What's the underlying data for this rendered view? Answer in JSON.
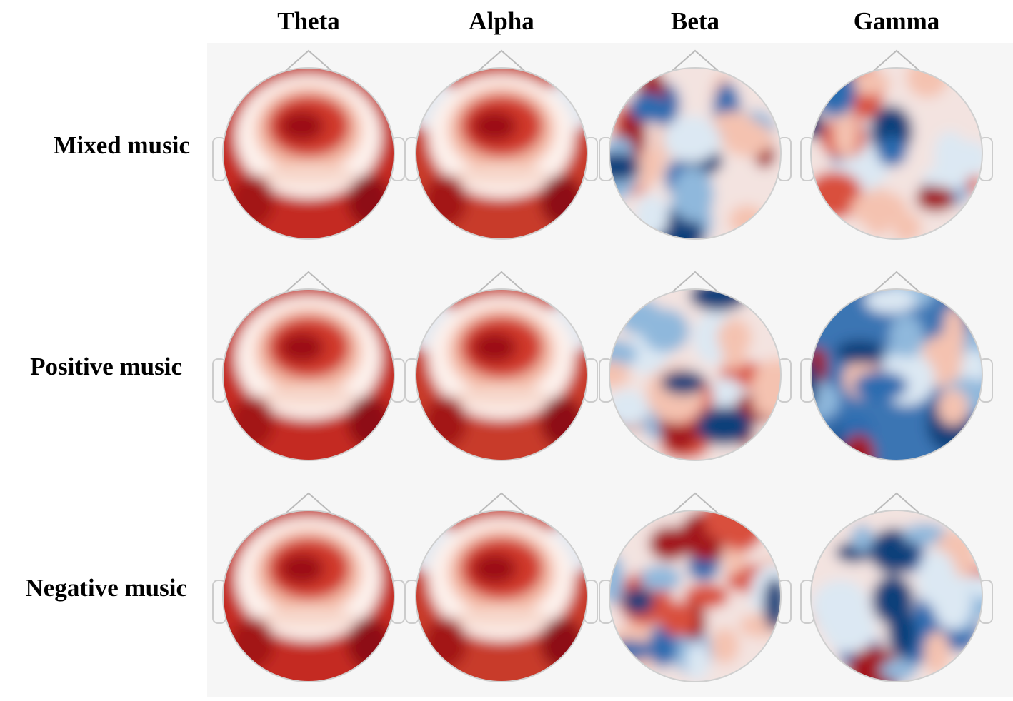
{
  "columns": [
    "Theta",
    "Alpha",
    "Beta",
    "Gamma"
  ],
  "rows": [
    "Mixed music",
    "Positive music",
    "Negative music"
  ]
}
